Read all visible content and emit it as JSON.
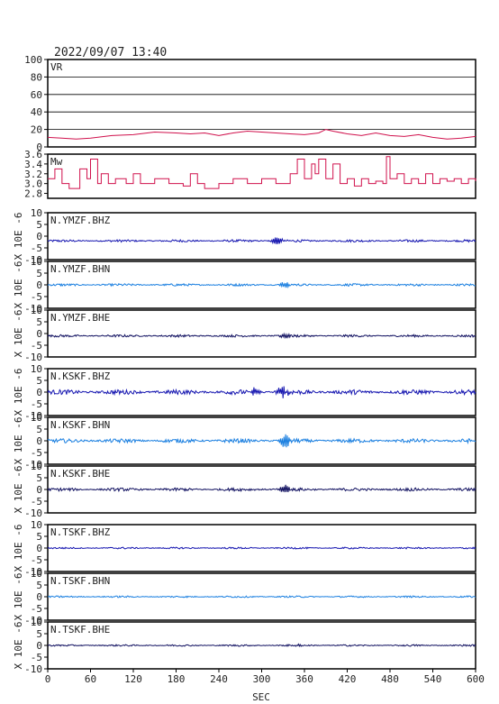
{
  "header": {
    "timestamp": "2022/09/07  13:40"
  },
  "chart_data": {
    "type": "line",
    "xlabel": "SEC",
    "xlim": [
      0,
      600
    ],
    "xticks": [
      0,
      60,
      120,
      180,
      240,
      300,
      360,
      420,
      480,
      540,
      600
    ],
    "panels": [
      {
        "label": "VR",
        "ylim": [
          0,
          100
        ],
        "yticks": [
          0,
          20,
          40,
          60,
          80,
          100
        ],
        "color": "#d0104c",
        "grid": true,
        "points": [
          [
            0,
            11
          ],
          [
            20,
            10
          ],
          [
            40,
            9
          ],
          [
            60,
            10
          ],
          [
            90,
            13
          ],
          [
            120,
            14
          ],
          [
            150,
            17
          ],
          [
            180,
            16
          ],
          [
            200,
            15
          ],
          [
            220,
            16
          ],
          [
            240,
            13
          ],
          [
            260,
            16
          ],
          [
            280,
            18
          ],
          [
            300,
            17
          ],
          [
            320,
            16
          ],
          [
            340,
            15
          ],
          [
            360,
            14
          ],
          [
            380,
            16
          ],
          [
            390,
            20
          ],
          [
            400,
            18
          ],
          [
            420,
            15
          ],
          [
            440,
            13
          ],
          [
            460,
            16
          ],
          [
            480,
            13
          ],
          [
            500,
            12
          ],
          [
            520,
            14
          ],
          [
            540,
            11
          ],
          [
            560,
            9
          ],
          [
            580,
            10
          ],
          [
            600,
            12
          ]
        ]
      },
      {
        "label": "Mw",
        "ylim": [
          2.7,
          3.6
        ],
        "yticks": [
          2.8,
          3.0,
          3.2,
          3.4,
          3.6
        ],
        "color": "#d0104c",
        "grid": false,
        "points": [
          [
            0,
            3.1
          ],
          [
            10,
            3.3
          ],
          [
            20,
            3.0
          ],
          [
            30,
            2.9
          ],
          [
            45,
            3.3
          ],
          [
            55,
            3.1
          ],
          [
            60,
            3.5
          ],
          [
            70,
            3.0
          ],
          [
            75,
            3.2
          ],
          [
            85,
            3.0
          ],
          [
            95,
            3.1
          ],
          [
            110,
            3.0
          ],
          [
            120,
            3.2
          ],
          [
            130,
            3.0
          ],
          [
            150,
            3.1
          ],
          [
            170,
            3.0
          ],
          [
            190,
            2.95
          ],
          [
            200,
            3.2
          ],
          [
            210,
            3.0
          ],
          [
            220,
            2.9
          ],
          [
            240,
            3.0
          ],
          [
            260,
            3.1
          ],
          [
            280,
            3.0
          ],
          [
            300,
            3.1
          ],
          [
            320,
            3.0
          ],
          [
            340,
            3.2
          ],
          [
            350,
            3.5
          ],
          [
            360,
            3.1
          ],
          [
            370,
            3.4
          ],
          [
            375,
            3.2
          ],
          [
            380,
            3.5
          ],
          [
            390,
            3.1
          ],
          [
            400,
            3.4
          ],
          [
            410,
            3.0
          ],
          [
            420,
            3.1
          ],
          [
            430,
            2.95
          ],
          [
            440,
            3.1
          ],
          [
            450,
            3.0
          ],
          [
            460,
            3.05
          ],
          [
            470,
            3.0
          ],
          [
            475,
            3.55
          ],
          [
            480,
            3.1
          ],
          [
            490,
            3.2
          ],
          [
            500,
            3.0
          ],
          [
            510,
            3.1
          ],
          [
            520,
            3.0
          ],
          [
            530,
            3.2
          ],
          [
            540,
            3.0
          ],
          [
            550,
            3.1
          ],
          [
            560,
            3.05
          ],
          [
            570,
            3.1
          ],
          [
            580,
            3.0
          ],
          [
            590,
            3.1
          ],
          [
            600,
            3.05
          ]
        ]
      }
    ],
    "waveforms": {
      "ylim": [
        -10,
        10
      ],
      "yticks": [
        -10,
        -5,
        0,
        5,
        10
      ],
      "ylabel": "X 10E -6",
      "channels": [
        {
          "label": "N.YMZF.BHZ",
          "color": "#1515b0",
          "offset": -2.0,
          "noise": 0.35,
          "bursts": [
            [
              320,
              1.6
            ]
          ]
        },
        {
          "label": "N.YMZF.BHN",
          "color": "#1a7fe0",
          "offset": 0.0,
          "noise": 0.35,
          "bursts": [
            [
              335,
              1.5
            ]
          ]
        },
        {
          "label": "N.YMZF.BHE",
          "color": "#101060",
          "offset": -1.0,
          "noise": 0.35,
          "bursts": [
            [
              335,
              1.2
            ]
          ]
        },
        {
          "label": "N.KSKF.BHZ",
          "color": "#1515b0",
          "offset": 0.0,
          "noise": 0.7,
          "bursts": [
            [
              330,
              2.2
            ],
            [
              290,
              1.3
            ]
          ]
        },
        {
          "label": "N.KSKF.BHN",
          "color": "#1a7fe0",
          "offset": 0.0,
          "noise": 0.6,
          "bursts": [
            [
              335,
              3.0
            ]
          ]
        },
        {
          "label": "N.KSKF.BHE",
          "color": "#101060",
          "offset": 0.0,
          "noise": 0.45,
          "bursts": [
            [
              335,
              2.5
            ]
          ]
        },
        {
          "label": "N.TSKF.BHZ",
          "color": "#1515b0",
          "offset": 0.0,
          "noise": 0.25,
          "bursts": []
        },
        {
          "label": "N.TSKF.BHN",
          "color": "#1a7fe0",
          "offset": 0.0,
          "noise": 0.25,
          "bursts": []
        },
        {
          "label": "N.TSKF.BHE",
          "color": "#101060",
          "offset": 0.0,
          "noise": 0.25,
          "bursts": [
            [
              345,
              0.9
            ]
          ]
        }
      ]
    }
  }
}
